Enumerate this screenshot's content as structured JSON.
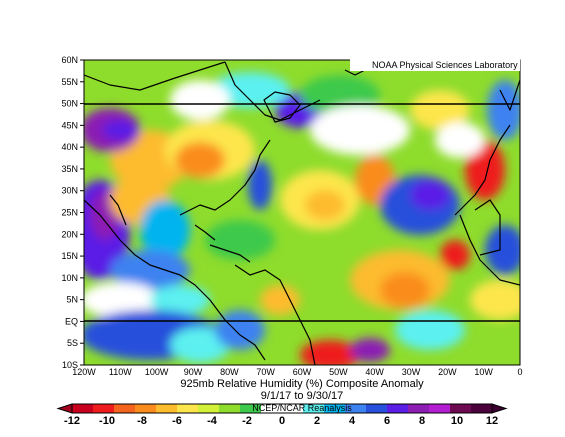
{
  "figure": {
    "credit": "NOAA Physical Sciences Laboratory",
    "title_line1": "925mb Relative Humidity (%) Composite Anomaly",
    "title_line2": "9/1/17  to 9/30/17",
    "watermark": "NCEP/NCAR Reanalysis"
  },
  "map": {
    "region": {
      "lon_min": -120,
      "lon_max": 0,
      "lat_min": -10,
      "lat_max": 60
    },
    "lat_labels": [
      "60N",
      "55N",
      "50N",
      "45N",
      "40N",
      "35N",
      "30N",
      "25N",
      "20N",
      "15N",
      "10N",
      "5N",
      "EQ",
      "5S",
      "10S"
    ],
    "lon_labels": [
      "120W",
      "110W",
      "100W",
      "90W",
      "80W",
      "70W",
      "60W",
      "50W",
      "40W",
      "30W",
      "20W",
      "10W",
      "0"
    ],
    "reference_lines": [
      "50N",
      "EQ"
    ]
  },
  "colorbar": {
    "tick_labels": [
      "-12",
      "-10",
      "-8",
      "-6",
      "-4",
      "-2",
      "0",
      "2",
      "4",
      "6",
      "8",
      "10",
      "12"
    ],
    "colors": [
      "#c8001e",
      "#ee1c1c",
      "#f5641e",
      "#fa8c1e",
      "#fdbb2e",
      "#fde64b",
      "#d4f13a",
      "#8edc2c",
      "#3cc94c",
      "#ffffff",
      "#ffffff",
      "#5cf0f0",
      "#00b4f0",
      "#3c82f0",
      "#2850dc",
      "#5a1ee6",
      "#8c1eb4",
      "#b41ed2",
      "#6e0a50",
      "#4b003c"
    ]
  }
}
